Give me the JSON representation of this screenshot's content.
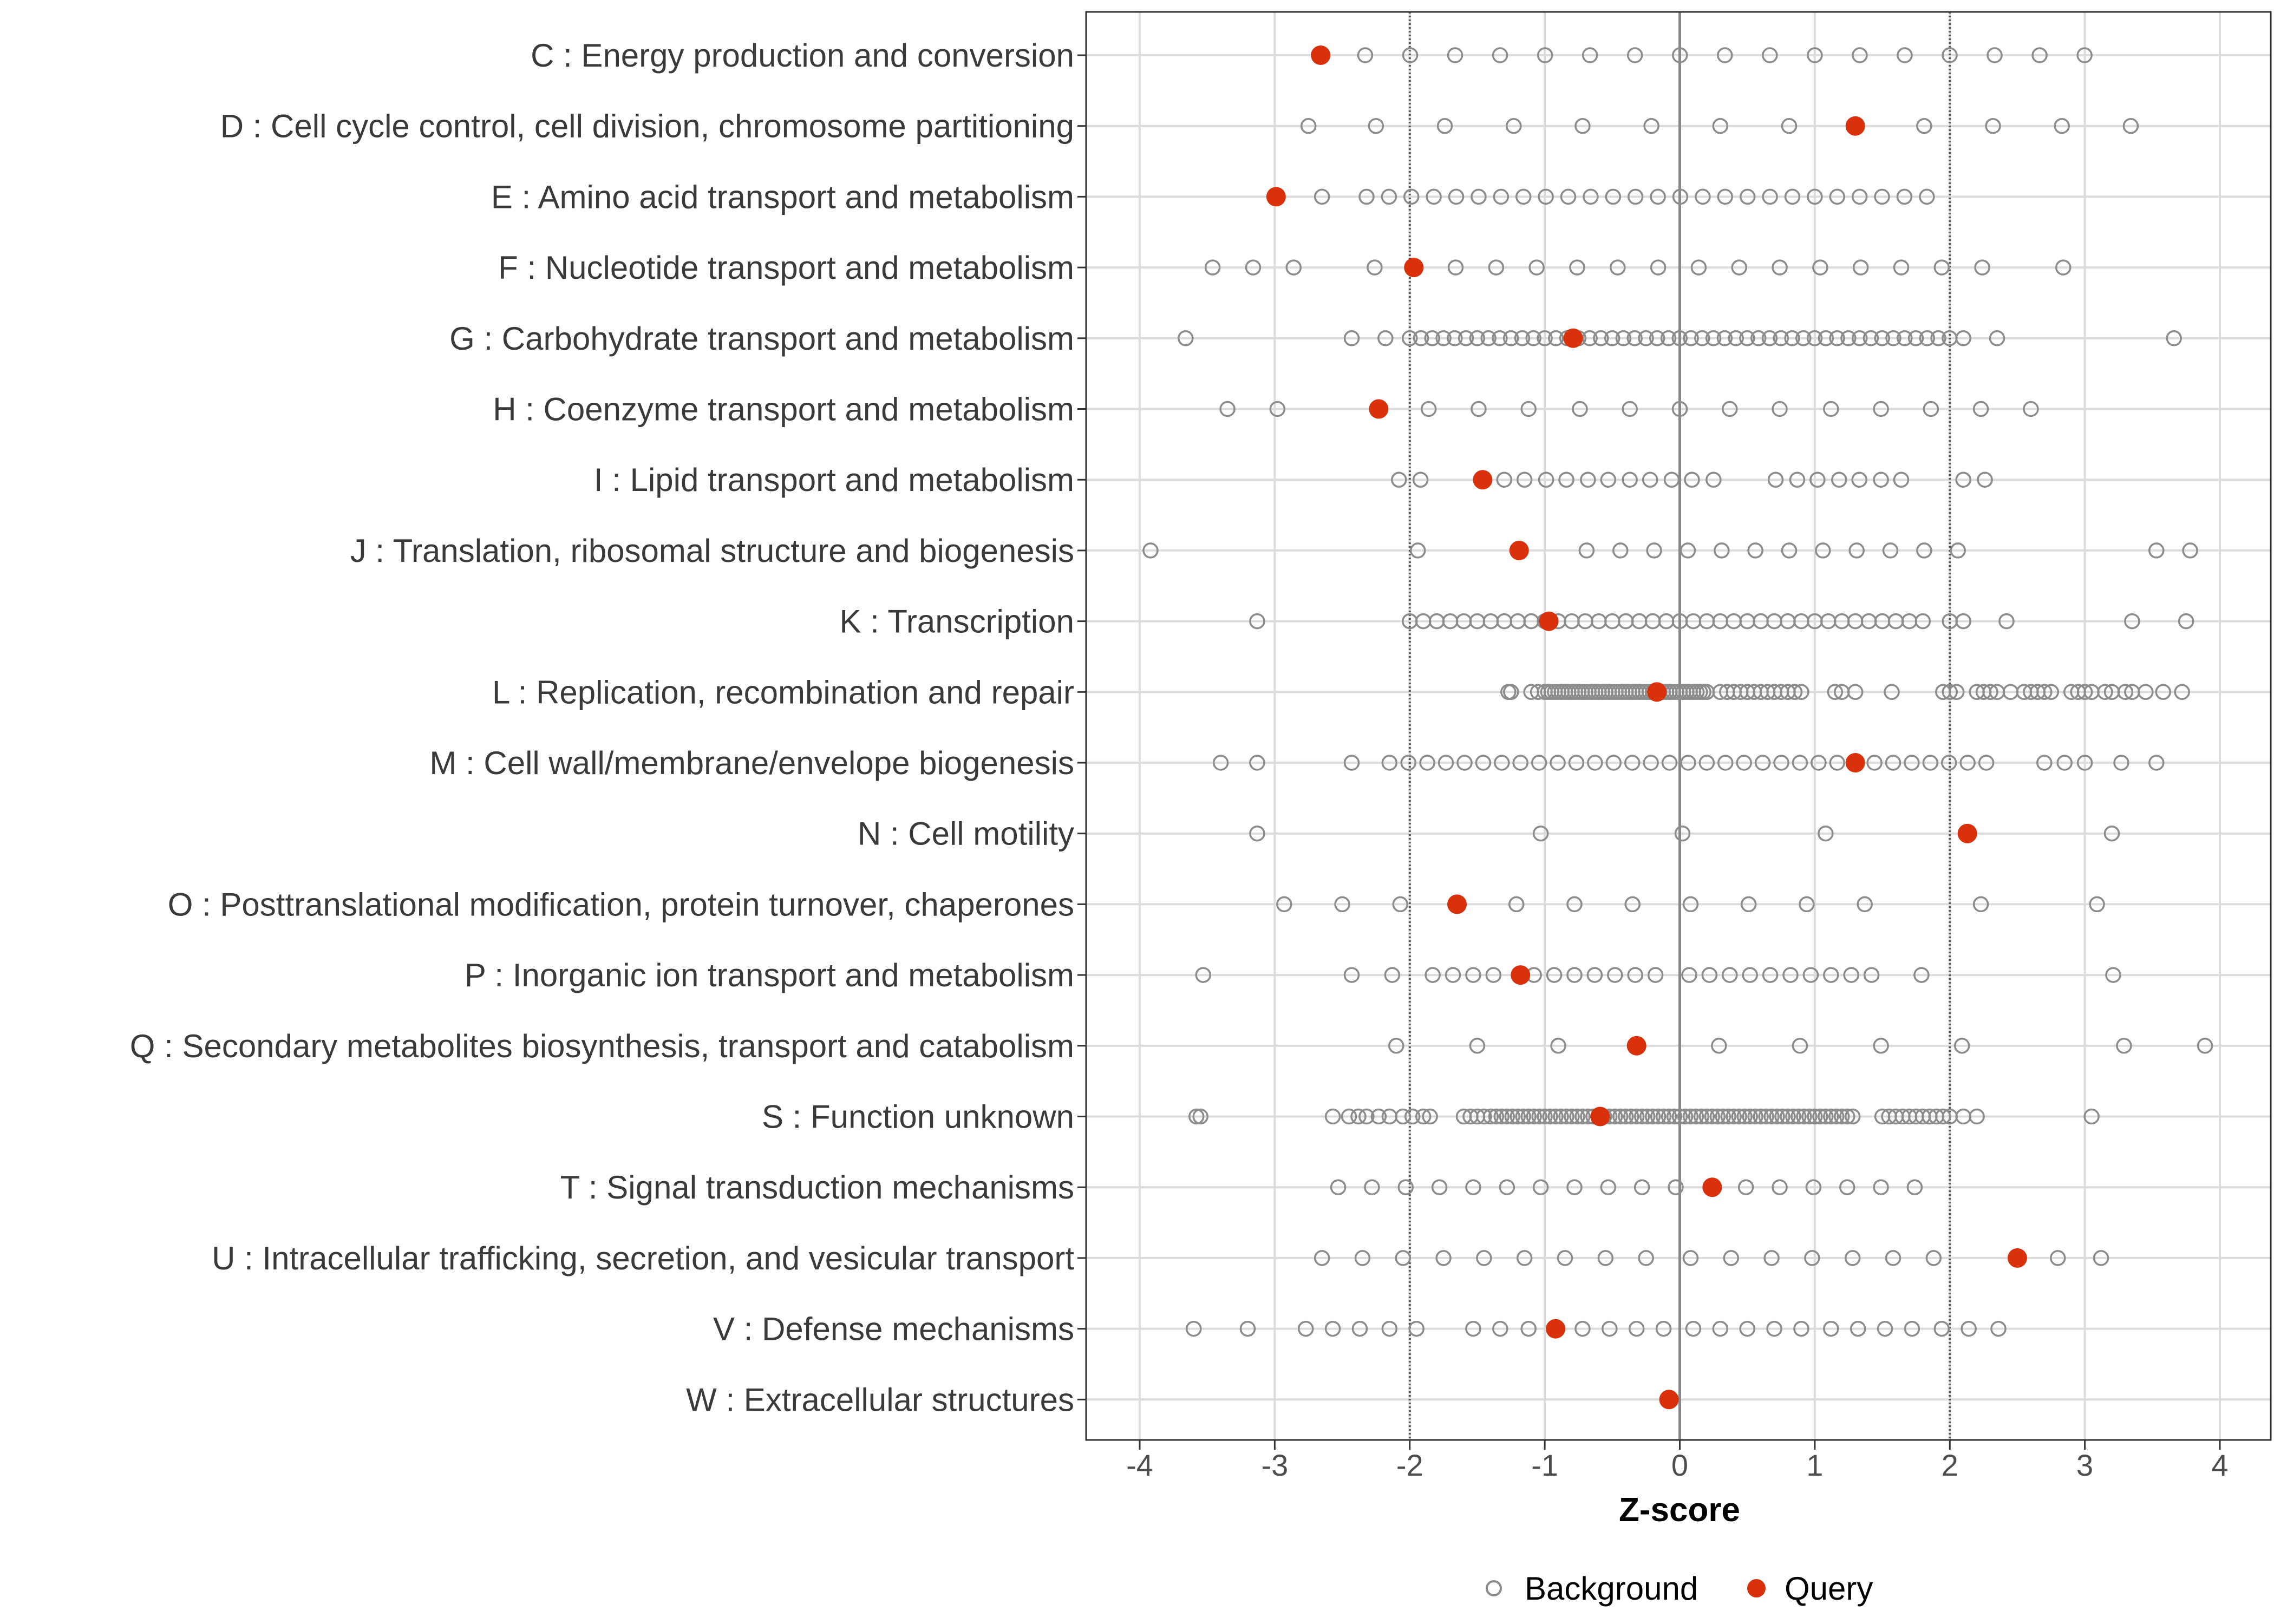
{
  "chart_data": {
    "type": "scatter",
    "title": "",
    "xlabel": "Z-score",
    "ylabel": "",
    "xlim": [
      -4.4,
      4.4
    ],
    "xticks": [
      -4,
      -3,
      -2,
      -1,
      0,
      1,
      2,
      3,
      4
    ],
    "xtick_labels": [
      "-4",
      "-3",
      "-2",
      "-1",
      "0",
      "1",
      "2",
      "3",
      "4"
    ],
    "reference_lines": {
      "dotted": [
        -2,
        2
      ],
      "solid": [
        0
      ]
    },
    "grid": true,
    "legend": {
      "placement": "bottom",
      "entries": [
        "Background",
        "Query"
      ]
    },
    "colors": {
      "background": "#8c8c8c",
      "query": "#d9310b"
    },
    "categories": [
      {
        "label": "C : Energy production and conversion",
        "query": -2.66,
        "background": [
          [
            -2.33,
            3.0,
            0.333
          ]
        ]
      },
      {
        "label": "D : Cell cycle control, cell division, chromosome partitioning",
        "query": 1.3,
        "background": [
          -2.75,
          -2.25,
          -1.74,
          -1.23,
          -0.72,
          -0.21,
          0.3,
          0.81,
          1.81,
          2.32,
          2.83,
          3.34
        ]
      },
      {
        "label": "E : Amino acid transport and metabolism",
        "query": -2.99,
        "background": [
          -2.65,
          [
            -2.32,
            1.87,
            0.166
          ]
        ]
      },
      {
        "label": "F : Nucleotide transport and metabolism",
        "query": -1.97,
        "background": [
          -3.46,
          -3.16,
          -2.86,
          -2.26,
          -1.66,
          -1.36,
          -1.06,
          -0.76,
          -0.46,
          -0.16,
          0.14,
          0.44,
          0.74,
          1.04,
          1.34,
          1.64,
          1.94,
          2.24,
          2.84
        ]
      },
      {
        "label": "G : Carbohydrate transport and metabolism",
        "query": -0.79,
        "background": [
          -3.66,
          -2.43,
          -2.18,
          [
            -2.0,
            2.0,
            0.0833
          ],
          2.1,
          2.35,
          3.66
        ]
      },
      {
        "label": "H : Coenzyme transport and metabolism",
        "query": -2.23,
        "background": [
          -3.35,
          -2.98,
          -1.86,
          -1.49,
          -1.12,
          -0.74,
          -0.37,
          0,
          0.37,
          0.74,
          1.12,
          1.49,
          1.86,
          2.23,
          2.6
        ]
      },
      {
        "label": "I : Lipid transport and metabolism",
        "query": -1.46,
        "background": [
          -2.08,
          -1.92,
          -1.3,
          -1.15,
          -0.99,
          -0.84,
          -0.68,
          -0.53,
          -0.37,
          -0.22,
          -0.06,
          0.09,
          0.25,
          0.71,
          0.87,
          1.02,
          1.18,
          1.33,
          1.49,
          1.64,
          2.1,
          2.26
        ]
      },
      {
        "label": "J : Translation, ribosomal structure and biogenesis",
        "query": -1.19,
        "background": [
          -3.92,
          -1.94,
          -0.69,
          -0.44,
          -0.19,
          0.06,
          0.31,
          0.56,
          0.81,
          1.06,
          1.31,
          1.56,
          1.81,
          2.06,
          3.53,
          3.78
        ]
      },
      {
        "label": "K : Transcription",
        "query": -0.97,
        "background": [
          -3.13,
          [
            -2.0,
            1.8,
            0.1
          ],
          2.0,
          2.1,
          2.42,
          3.35,
          3.75
        ]
      },
      {
        "label": "L : Replication, recombination and repair",
        "query": -0.17,
        "background": [
          -1.27,
          -1.25,
          -1.1,
          -1.05,
          [
            -1.0,
            0.2,
            0.025
          ],
          [
            0.3,
            0.9,
            0.05
          ],
          1.15,
          1.2,
          1.3,
          1.57,
          1.95,
          2.0,
          2.05,
          2.2,
          2.25,
          2.3,
          2.35,
          2.45,
          2.55,
          2.6,
          2.65,
          2.7,
          2.75,
          2.9,
          2.95,
          3.0,
          3.05,
          3.15,
          3.2,
          3.3,
          3.35,
          3.45,
          3.58,
          3.72
        ]
      },
      {
        "label": "M : Cell wall/membrane/envelope biogenesis",
        "query": 1.3,
        "background": [
          -3.4,
          -3.13,
          -2.43,
          -2.15,
          -2.01,
          [
            -1.87,
            2.4,
            0.138
          ],
          2.7,
          2.85,
          3.0,
          3.27,
          3.53
        ]
      },
      {
        "label": "N : Cell motility",
        "query": 2.13,
        "background": [
          -3.13,
          -1.03,
          0.02,
          1.08,
          3.2
        ]
      },
      {
        "label": "O : Posttranslational modification, protein turnover, chaperones",
        "query": -1.65,
        "background": [
          -2.93,
          -2.5,
          -2.07,
          -1.21,
          -0.78,
          -0.35,
          0.08,
          0.51,
          0.94,
          1.37,
          2.23,
          3.09
        ]
      },
      {
        "label": "P : Inorganic ion transport and metabolism",
        "query": -1.18,
        "background": [
          -3.53,
          -2.43,
          -2.13,
          -1.83,
          -1.68,
          -1.53,
          -1.38,
          -1.08,
          -0.93,
          -0.78,
          -0.63,
          -0.48,
          -0.33,
          -0.18,
          0.07,
          0.22,
          0.37,
          0.52,
          0.67,
          0.82,
          0.97,
          1.12,
          1.27,
          1.42,
          1.79,
          3.21
        ]
      },
      {
        "label": "Q : Secondary metabolites biosynthesis, transport and catabolism",
        "query": -0.32,
        "background": [
          -2.1,
          -1.5,
          -0.9,
          0.29,
          0.89,
          1.49,
          2.09,
          3.29,
          3.89
        ]
      },
      {
        "label": "S : Function unknown",
        "query": -0.59,
        "background": [
          -3.58,
          -3.55,
          -2.57,
          -2.45,
          -2.38,
          -2.32,
          -2.23,
          -2.15,
          -2.05,
          -1.98,
          -1.9,
          -1.85,
          -1.6,
          -1.55,
          -1.5,
          -1.45,
          [
            -1.4,
            1.3,
            0.04
          ],
          [
            1.5,
            2.0,
            0.05
          ],
          2.1,
          2.2,
          3.05
        ]
      },
      {
        "label": "T : Signal transduction mechanisms",
        "query": 0.24,
        "background": [
          -2.53,
          -2.28,
          -2.03,
          -1.78,
          -1.53,
          -1.28,
          -1.03,
          -0.78,
          -0.53,
          -0.28,
          -0.03,
          0.49,
          0.74,
          0.99,
          1.24,
          1.49,
          1.74
        ]
      },
      {
        "label": "U : Intracellular trafficking, secretion, and vesicular transport",
        "query": 2.5,
        "background": [
          -2.65,
          -2.35,
          -2.05,
          -1.75,
          -1.45,
          -1.15,
          -0.85,
          -0.55,
          -0.25,
          0.08,
          0.38,
          0.68,
          0.98,
          1.28,
          1.58,
          1.88,
          2.8,
          3.12
        ]
      },
      {
        "label": "V : Defense mechanisms",
        "query": -0.92,
        "background": [
          -3.6,
          -3.2,
          -2.77,
          -2.57,
          -2.37,
          -2.15,
          -1.95,
          -1.53,
          -1.33,
          -1.12,
          -0.72,
          -0.52,
          -0.32,
          -0.12,
          0.1,
          0.3,
          0.5,
          0.7,
          0.9,
          1.12,
          1.32,
          1.52,
          1.72,
          1.94,
          2.14,
          2.36
        ]
      },
      {
        "label": "W : Extracellular structures",
        "query": -0.08,
        "background": []
      }
    ]
  }
}
